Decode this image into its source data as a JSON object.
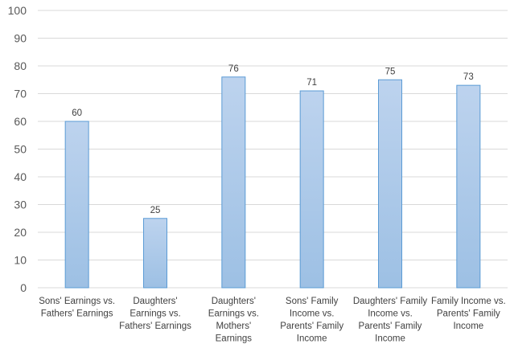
{
  "chart_data": {
    "type": "bar",
    "categories": [
      [
        "Sons' Earnings vs.",
        "Fathers' Earnings"
      ],
      [
        "Daughters'",
        "Earnings vs.",
        "Fathers' Earnings"
      ],
      [
        "Daughters'",
        "Earnings vs.",
        "Mothers'",
        "Earnings"
      ],
      [
        "Sons' Family",
        "Income vs.",
        "Parents' Family",
        "Income"
      ],
      [
        "Daughters' Family",
        "Income vs.",
        "Parents' Family",
        "Income"
      ],
      [
        "Family Income vs.",
        "Parents' Family",
        "Income"
      ]
    ],
    "values": [
      60,
      25,
      76,
      71,
      75,
      73
    ],
    "data_labels": [
      "60",
      "25",
      "76",
      "71",
      "75",
      "73"
    ],
    "title": "",
    "xlabel": "",
    "ylabel": "",
    "ylim": [
      0,
      100
    ],
    "yticks": [
      "0",
      "10",
      "20",
      "30",
      "40",
      "50",
      "60",
      "70",
      "80",
      "90",
      "100"
    ],
    "grid": true,
    "legend": "none",
    "colors": {
      "bar_top": "#bdd3ee",
      "bar_bottom": "#9dc0e4",
      "bar_border": "#5b9bd5",
      "grid": "#d9d9d9",
      "text": "#404040"
    }
  }
}
